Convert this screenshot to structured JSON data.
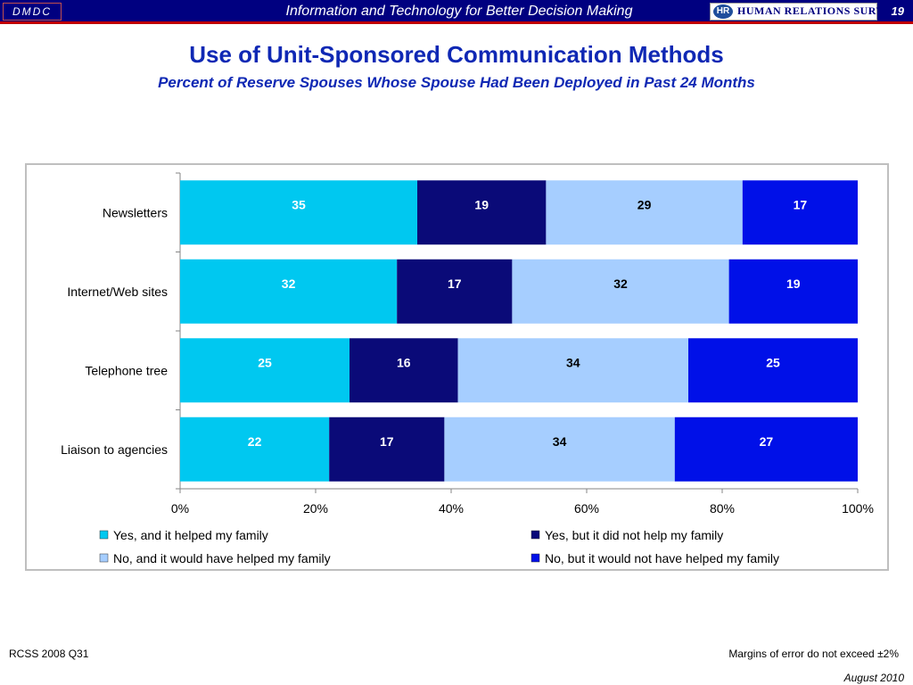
{
  "header": {
    "org": "DMDC",
    "tagline": "Information and Technology for Better Decision Making",
    "logo_mark": "HR",
    "logo_text": "HUMAN RELATIONS SURVEYS",
    "page": "19"
  },
  "footer": {
    "source": "RCSS 2008 Q31",
    "margin_note": "Margins of error do not exceed ±2%",
    "date": "August 2010"
  },
  "chart_data": {
    "type": "bar",
    "orientation": "horizontal",
    "stacked": "100%",
    "title": "Use of Unit-Sponsored Communication Methods",
    "subtitle": "Percent of Reserve Spouses Whose Spouse Had Been Deployed in Past 24 Months",
    "categories": [
      "Newsletters",
      "Internet/Web sites",
      "Telephone tree",
      "Liaison to agencies"
    ],
    "series": [
      {
        "name": "Yes, and it helped my family",
        "values": [
          35,
          32,
          25,
          22
        ],
        "color": "#00c8f0",
        "label_color": "#ffffff"
      },
      {
        "name": "Yes, but it did not help my family",
        "values": [
          19,
          17,
          16,
          17
        ],
        "color": "#0a0a78",
        "label_color": "#ffffff"
      },
      {
        "name": "No, and it would have helped my family",
        "values": [
          29,
          32,
          34,
          34
        ],
        "color": "#a6ceff",
        "label_color": "#000000"
      },
      {
        "name": "No, but it would not have helped my family",
        "values": [
          17,
          19,
          25,
          27
        ],
        "color": "#0010e8",
        "label_color": "#ffffff"
      }
    ],
    "xlim": [
      0,
      100
    ],
    "xticks": [
      "0%",
      "20%",
      "40%",
      "60%",
      "80%",
      "100%"
    ],
    "legend": "bottom",
    "grid": false
  }
}
